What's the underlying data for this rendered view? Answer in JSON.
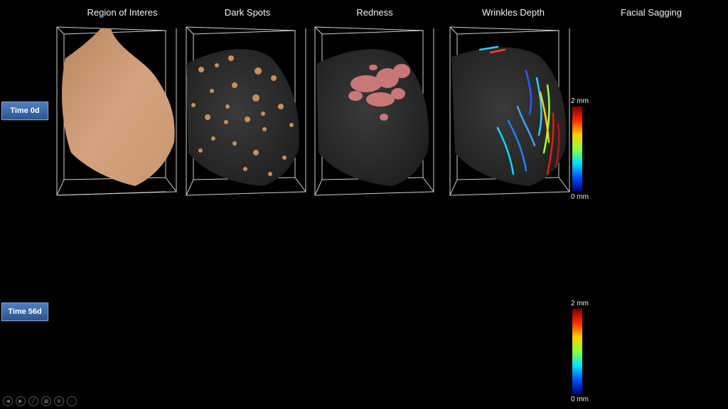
{
  "columns": [
    {
      "title": "Region of Interes"
    },
    {
      "title": "Dark Spots"
    },
    {
      "title": "Redness"
    },
    {
      "title": "Wrinkles Depth"
    },
    {
      "title": "Facial Sagging"
    }
  ],
  "rows": [
    {
      "label": "Time 0d"
    },
    {
      "label": "Time 56d"
    }
  ],
  "colorbar": {
    "max_label": "2 mm",
    "min_label": "0 mm"
  },
  "colors": {
    "skin": "#d4a27e",
    "surface": "#2a2a2a",
    "dark_spot": "#c49060",
    "redness": "#d98080",
    "row_label_bg": "#3a66a8"
  },
  "toolbar": {
    "icons": [
      "prev-icon",
      "next-icon",
      "pen-icon",
      "slides-icon",
      "zoom-icon",
      "more-icon"
    ]
  }
}
